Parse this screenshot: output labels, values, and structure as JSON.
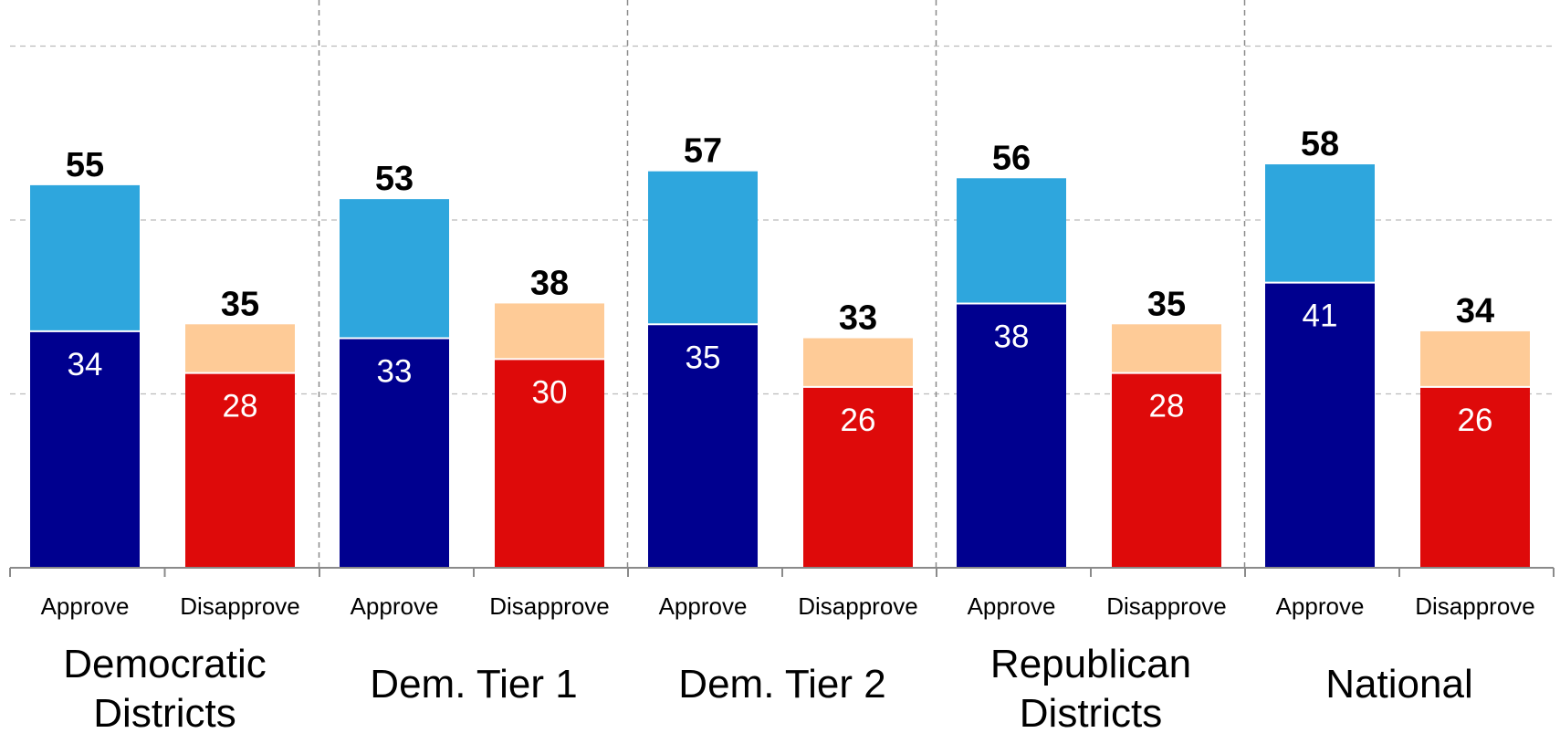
{
  "chart_data": {
    "type": "bar",
    "stacked": true,
    "groups": [
      {
        "label_lines": [
          "Democratic",
          "Districts"
        ],
        "bars": [
          {
            "label": "Approve",
            "total": 55,
            "strong": 34
          },
          {
            "label": "Disapprove",
            "total": 35,
            "strong": 28
          }
        ]
      },
      {
        "label_lines": [
          "Dem. Tier 1"
        ],
        "bars": [
          {
            "label": "Approve",
            "total": 53,
            "strong": 33
          },
          {
            "label": "Disapprove",
            "total": 38,
            "strong": 30
          }
        ]
      },
      {
        "label_lines": [
          "Dem. Tier 2"
        ],
        "bars": [
          {
            "label": "Approve",
            "total": 57,
            "strong": 35
          },
          {
            "label": "Disapprove",
            "total": 33,
            "strong": 26
          }
        ]
      },
      {
        "label_lines": [
          "Republican",
          "Districts"
        ],
        "bars": [
          {
            "label": "Approve",
            "total": 56,
            "strong": 38
          },
          {
            "label": "Disapprove",
            "total": 35,
            "strong": 28
          }
        ]
      },
      {
        "label_lines": [
          "National"
        ],
        "bars": [
          {
            "label": "Approve",
            "total": 58,
            "strong": 41
          },
          {
            "label": "Disapprove",
            "total": 34,
            "strong": 26
          }
        ]
      }
    ],
    "ylim": [
      0,
      75
    ],
    "gridlines": [
      25,
      50,
      75
    ],
    "colors": {
      "approve_strong": "#00008f",
      "approve_total": "#2ea6dd",
      "disapprove_strong": "#de0a0a",
      "disapprove_total": "#fecb97",
      "grid": "#bbbbbb",
      "divider": "#8a8a8a",
      "axis": "#8a8a8a"
    }
  }
}
